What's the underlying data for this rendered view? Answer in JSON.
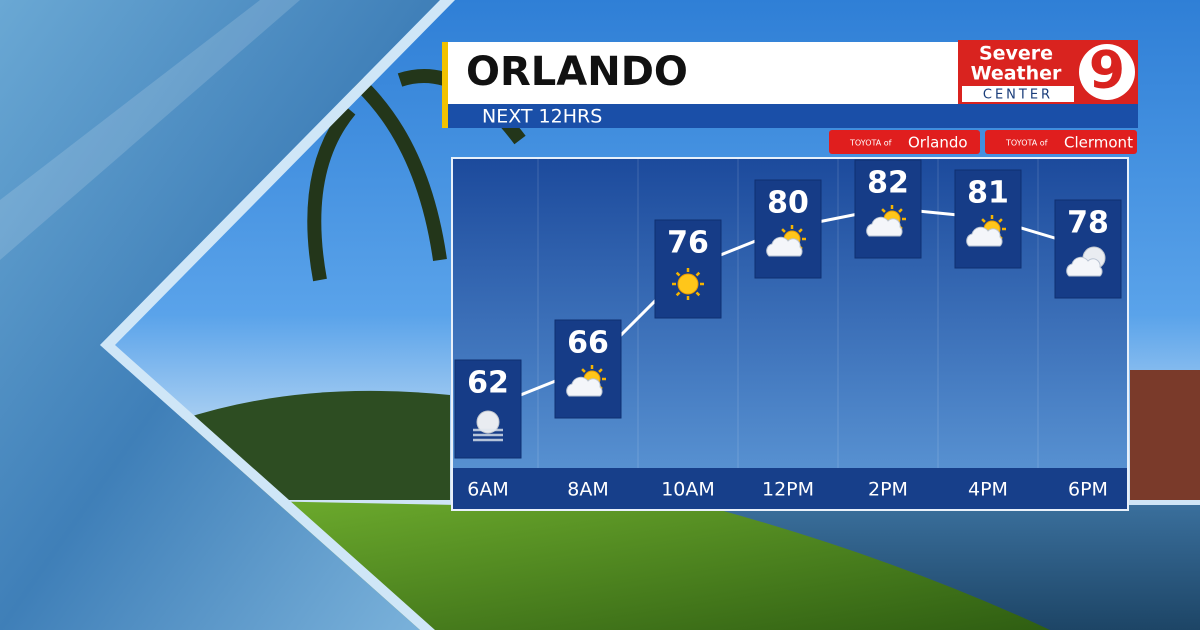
{
  "chart_data": {
    "type": "line",
    "title": "ORLANDO",
    "subtitle": "NEXT 12HRS",
    "categories": [
      "6AM",
      "8AM",
      "10AM",
      "12PM",
      "2PM",
      "4PM",
      "6PM"
    ],
    "values": [
      62,
      66,
      76,
      80,
      82,
      81,
      78
    ],
    "color": "#ffffff",
    "ylim": [
      56,
      87
    ],
    "grid": true
  },
  "logo": {
    "line1": "Severe",
    "line2": "Weather",
    "line3": "CENTER",
    "channel": "9"
  },
  "sponsors": [
    {
      "make": "TOYOTA of",
      "dealer": "Orlando"
    },
    {
      "make": "TOYOTA of",
      "dealer": "Clermont"
    }
  ]
}
